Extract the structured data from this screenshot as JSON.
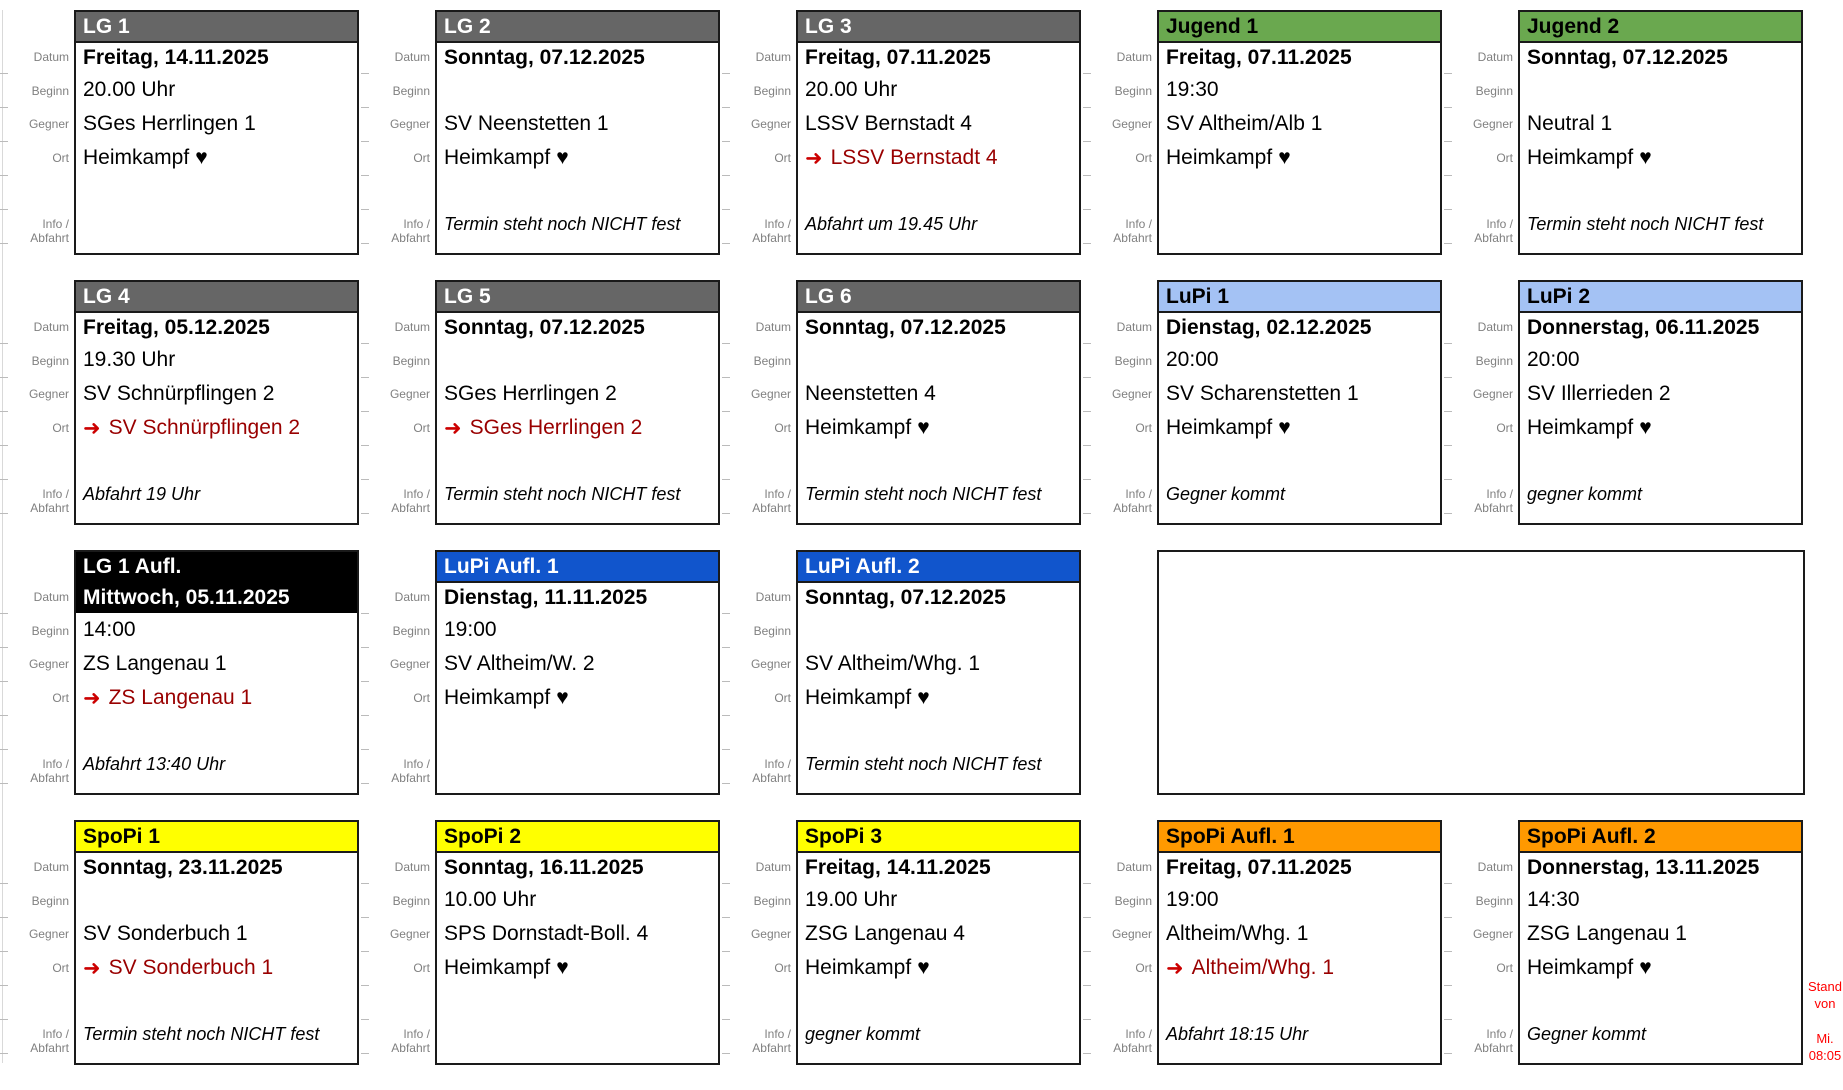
{
  "ui": {
    "away_arrow": "➜",
    "heart": "♥"
  },
  "labels": {
    "datum": "Datum",
    "beginn": "Beginn",
    "gegner": "Gegner",
    "ort": "Ort",
    "info_line1": "Info /",
    "info_line2": "Abfahrt"
  },
  "styles": {
    "lg": {
      "bg": "#666666",
      "fg": "#ffffff"
    },
    "jugend": {
      "bg": "#6aa84f",
      "fg": "#000000"
    },
    "lupi": {
      "bg": "#a4c2f4",
      "fg": "#000000"
    },
    "lg-aufl": {
      "bg": "#000000",
      "fg": "#ffffff"
    },
    "lupi-aufl": {
      "bg": "#1155cc",
      "fg": "#ffffff"
    },
    "spopi": {
      "bg": "#ffff00",
      "fg": "#000000"
    },
    "spopi-aufl": {
      "bg": "#ff9900",
      "fg": "#000000"
    }
  },
  "colors": {
    "away_text": "#990000",
    "away_arrow": "#cc0000",
    "label_gray": "#808080",
    "stand_red": "#ff0000",
    "card_border": "#1a1a1a"
  },
  "cards": [
    {
      "row": 1,
      "col": 1,
      "style": "lg",
      "title": "LG 1",
      "datum": "Freitag, 14.11.2025",
      "beginn": "20.00 Uhr",
      "gegner": "SGes Herrlingen 1",
      "ort": {
        "text": "Heimkampf",
        "heart": true,
        "away": false
      },
      "info": ""
    },
    {
      "row": 1,
      "col": 2,
      "style": "lg",
      "title": "LG 2",
      "datum": "Sonntag, 07.12.2025",
      "beginn": "",
      "gegner": "SV Neenstetten 1",
      "ort": {
        "text": "Heimkampf",
        "heart": true,
        "away": false
      },
      "info": "Termin steht noch NICHT fest"
    },
    {
      "row": 1,
      "col": 3,
      "style": "lg",
      "title": "LG 3",
      "datum": "Freitag, 07.11.2025",
      "beginn": "20.00 Uhr",
      "gegner": "LSSV Bernstadt 4",
      "ort": {
        "text": "LSSV Bernstadt 4",
        "heart": false,
        "away": true
      },
      "info": "Abfahrt um 19.45 Uhr"
    },
    {
      "row": 1,
      "col": 4,
      "style": "jugend",
      "title": "Jugend 1",
      "datum": "Freitag, 07.11.2025",
      "beginn": "19:30",
      "gegner": "SV Altheim/Alb 1",
      "ort": {
        "text": "Heimkampf",
        "heart": true,
        "away": false
      },
      "info": ""
    },
    {
      "row": 1,
      "col": 5,
      "style": "jugend",
      "title": "Jugend 2",
      "datum": "Sonntag, 07.12.2025",
      "beginn": "",
      "gegner": "Neutral 1",
      "ort": {
        "text": "Heimkampf",
        "heart": true,
        "away": false
      },
      "info": "Termin steht noch NICHT fest"
    },
    {
      "row": 2,
      "col": 1,
      "style": "lg",
      "title": "LG 4",
      "datum": "Freitag, 05.12.2025",
      "beginn": "19.30 Uhr",
      "gegner": "SV Schnürpflingen 2",
      "ort": {
        "text": "SV Schnürpflingen 2",
        "heart": false,
        "away": true
      },
      "info": "Abfahrt 19 Uhr"
    },
    {
      "row": 2,
      "col": 2,
      "style": "lg",
      "title": "LG 5",
      "datum": "Sonntag, 07.12.2025",
      "beginn": "",
      "gegner": "SGes Herrlingen 2",
      "ort": {
        "text": "SGes Herrlingen 2",
        "heart": false,
        "away": true
      },
      "info": "Termin steht noch NICHT fest"
    },
    {
      "row": 2,
      "col": 3,
      "style": "lg",
      "title": "LG 6",
      "datum": "Sonntag, 07.12.2025",
      "beginn": "",
      "gegner": "Neenstetten 4",
      "ort": {
        "text": "Heimkampf",
        "heart": true,
        "away": false
      },
      "info": "Termin steht noch NICHT fest"
    },
    {
      "row": 2,
      "col": 4,
      "style": "lupi",
      "title": "LuPi 1",
      "datum": "Dienstag, 02.12.2025",
      "beginn": "20:00",
      "gegner": "SV Scharenstetten 1",
      "ort": {
        "text": "Heimkampf",
        "heart": true,
        "away": false
      },
      "info": "Gegner kommt"
    },
    {
      "row": 2,
      "col": 5,
      "style": "lupi",
      "title": "LuPi 2",
      "datum": "Donnerstag, 06.11.2025",
      "beginn": "20:00",
      "gegner": "SV Illerrieden 2",
      "ort": {
        "text": "Heimkampf",
        "heart": true,
        "away": false
      },
      "info": "gegner kommt"
    },
    {
      "row": 3,
      "col": 1,
      "style": "lg-aufl",
      "title": "LG 1 Aufl.",
      "datum": "Mittwoch, 05.11.2025",
      "beginn": "14:00",
      "gegner": "ZS Langenau 1",
      "ort": {
        "text": "ZS Langenau 1",
        "heart": false,
        "away": true
      },
      "info": "Abfahrt 13:40 Uhr"
    },
    {
      "row": 3,
      "col": 2,
      "style": "lupi-aufl",
      "title": "LuPi Aufl. 1",
      "datum": "Dienstag, 11.11.2025",
      "beginn": "19:00",
      "gegner": "SV Altheim/W. 2",
      "ort": {
        "text": "Heimkampf",
        "heart": true,
        "away": false
      },
      "info": ""
    },
    {
      "row": 3,
      "col": 3,
      "style": "lupi-aufl",
      "title": "LuPi Aufl. 2",
      "datum": "Sonntag, 07.12.2025",
      "beginn": "",
      "gegner": "SV Altheim/Whg. 1",
      "ort": {
        "text": "Heimkampf",
        "heart": true,
        "away": false
      },
      "info": "Termin steht noch NICHT fest"
    },
    {
      "row": 4,
      "col": 1,
      "style": "spopi",
      "title": "SpoPi 1",
      "datum": "Sonntag, 23.11.2025",
      "beginn": "",
      "gegner": "SV Sonderbuch 1",
      "ort": {
        "text": "SV Sonderbuch 1",
        "heart": false,
        "away": true
      },
      "info": "Termin steht noch NICHT fest"
    },
    {
      "row": 4,
      "col": 2,
      "style": "spopi",
      "title": "SpoPi 2",
      "datum": "Sonntag, 16.11.2025",
      "beginn": "10.00 Uhr",
      "gegner": "SPS Dornstadt-Boll. 4",
      "ort": {
        "text": "Heimkampf",
        "heart": true,
        "away": false
      },
      "info": ""
    },
    {
      "row": 4,
      "col": 3,
      "style": "spopi",
      "title": "SpoPi 3",
      "datum": "Freitag, 14.11.2025",
      "beginn": "19.00 Uhr",
      "gegner": "ZSG Langenau 4",
      "ort": {
        "text": "Heimkampf",
        "heart": true,
        "away": false
      },
      "info": "gegner kommt"
    },
    {
      "row": 4,
      "col": 4,
      "style": "spopi-aufl",
      "title": "SpoPi Aufl. 1",
      "datum": "Freitag, 07.11.2025",
      "beginn": "19:00",
      "gegner": "Altheim/Whg. 1",
      "ort": {
        "text": "Altheim/Whg. 1",
        "heart": false,
        "away": true
      },
      "info": "Abfahrt 18:15 Uhr"
    },
    {
      "row": 4,
      "col": 5,
      "style": "spopi-aufl",
      "title": "SpoPi Aufl. 2",
      "datum": "Donnerstag, 13.11.2025",
      "beginn": "14:30",
      "gegner": "ZSG Langenau 1",
      "ort": {
        "text": "Heimkampf",
        "heart": true,
        "away": false
      },
      "info": "Gegner kommt"
    }
  ],
  "empty_cell": {
    "row": 3,
    "col_start": 4,
    "col_span": 2
  },
  "stand": {
    "lines": [
      "Stand",
      "von",
      "Mi.",
      "08:05"
    ]
  }
}
